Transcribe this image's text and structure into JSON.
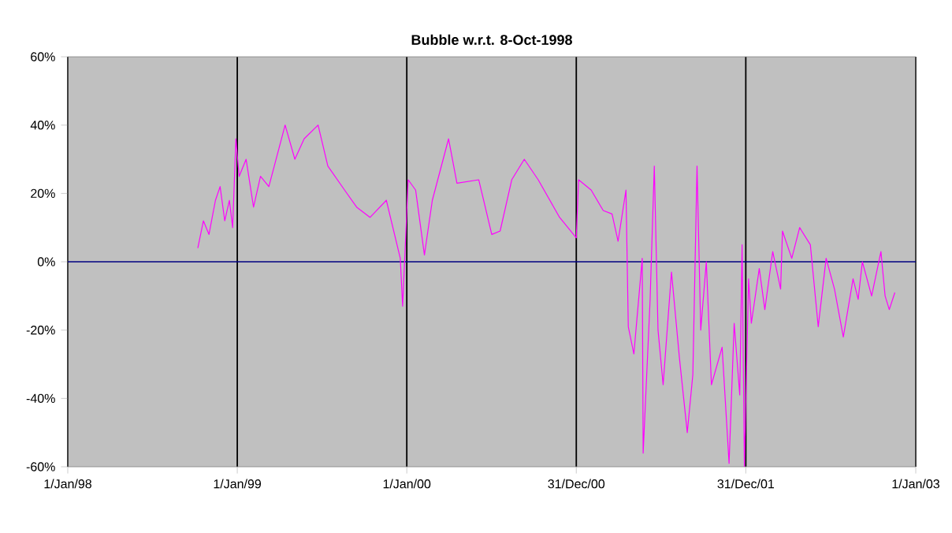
{
  "chart_data": {
    "type": "line",
    "title": "Bubble w.r.t. 8-Oct-1998",
    "xlim": [
      "1998-01-01",
      "2003-01-01"
    ],
    "xticks": [
      {
        "value": "1998-01-01",
        "label": "1/Jan/98"
      },
      {
        "value": "1999-01-01",
        "label": "1/Jan/99"
      },
      {
        "value": "2000-01-01",
        "label": "1/Jan/00"
      },
      {
        "value": "2000-12-31",
        "label": "31/Dec/00"
      },
      {
        "value": "2001-12-31",
        "label": "31/Dec/01"
      },
      {
        "value": "2003-01-01",
        "label": "1/Jan/03"
      }
    ],
    "ylim": [
      -60,
      60
    ],
    "yticks": [
      {
        "value": -60,
        "label": "-60%"
      },
      {
        "value": -40,
        "label": "-40%"
      },
      {
        "value": -20,
        "label": "-20%"
      },
      {
        "value": 0,
        "label": "0%"
      },
      {
        "value": 20,
        "label": "20%"
      },
      {
        "value": 40,
        "label": "40%"
      },
      {
        "value": 60,
        "label": "60%"
      }
    ],
    "grid": "x",
    "marker": "none",
    "line_style": "solid",
    "ref_lines": [
      {
        "axis": "y",
        "value": 0,
        "color": "#000080"
      }
    ],
    "series": [
      {
        "color": "#ff00ff",
        "x": [
          "1998-10-08",
          "1998-10-20",
          "1998-11-01",
          "1998-11-15",
          "1998-11-25",
          "1998-12-05",
          "1998-12-15",
          "1998-12-22",
          "1998-12-29",
          "1999-01-05",
          "1999-01-20",
          "1999-02-05",
          "1999-02-20",
          "1999-03-10",
          "1999-04-14",
          "1999-05-05",
          "1999-05-25",
          "1999-06-24",
          "1999-07-15",
          "1999-08-20",
          "1999-09-15",
          "1999-10-14",
          "1999-11-18",
          "1999-12-18",
          "1999-12-23",
          "2000-01-04",
          "2000-01-20",
          "2000-02-08",
          "2000-02-25",
          "2000-03-31",
          "2000-04-18",
          "2000-06-04",
          "2000-07-02",
          "2000-07-20",
          "2000-08-14",
          "2000-09-10",
          "2000-10-10",
          "2000-11-25",
          "2000-12-31",
          "2001-01-05",
          "2001-02-01",
          "2001-02-27",
          "2001-03-18",
          "2001-03-31",
          "2001-04-17",
          "2001-04-22",
          "2001-05-04",
          "2001-05-22",
          "2001-05-24",
          "2001-06-08",
          "2001-06-17",
          "2001-06-25",
          "2001-07-06",
          "2001-07-24",
          "2001-08-10",
          "2001-08-27",
          "2001-09-08",
          "2001-09-17",
          "2001-09-25",
          "2001-10-07",
          "2001-10-18",
          "2001-11-10",
          "2001-11-25",
          "2001-12-06",
          "2001-12-18",
          "2001-12-23",
          "2001-12-28",
          "2002-01-06",
          "2002-01-12",
          "2002-01-29",
          "2002-02-10",
          "2002-02-27",
          "2002-03-16",
          "2002-03-20",
          "2002-04-09",
          "2002-04-26",
          "2002-05-19",
          "2002-06-05",
          "2002-06-22",
          "2002-07-10",
          "2002-07-29",
          "2002-08-19",
          "2002-08-30",
          "2002-09-08",
          "2002-09-28",
          "2002-10-18",
          "2002-10-27",
          "2002-11-05",
          "2002-11-17"
        ],
        "values": [
          4,
          12,
          8,
          18,
          22,
          12,
          18,
          10,
          36,
          25,
          30,
          16,
          25,
          22,
          40,
          30,
          36,
          40,
          28,
          21,
          16,
          13,
          18,
          1,
          -13,
          24,
          21,
          2,
          18,
          36,
          23,
          24,
          8,
          9,
          24,
          30,
          24,
          13,
          7,
          24,
          21,
          15,
          14,
          6,
          21,
          -19,
          -27,
          1,
          -56,
          -11,
          28,
          -20,
          -36,
          -3,
          -28,
          -50,
          -33,
          28,
          -20,
          0,
          -36,
          -25,
          -59,
          -18,
          -39,
          5,
          -60,
          -5,
          -18,
          -2,
          -14,
          3,
          -8,
          9,
          1,
          10,
          5,
          -19,
          1,
          -8,
          -22,
          -5,
          -11,
          0,
          -10,
          3,
          -10,
          -14,
          -9
        ]
      }
    ]
  }
}
